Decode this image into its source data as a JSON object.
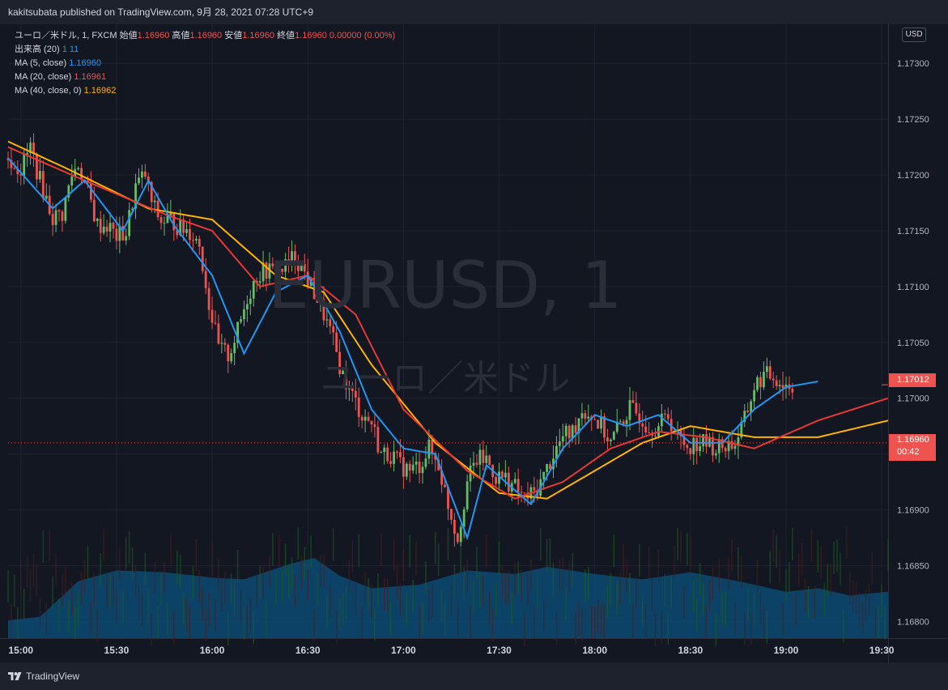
{
  "publish_line": "kakitsubata published on TradingView.com, 9月 28, 2021 07:28 UTC+9",
  "legend": {
    "symbol_label": "ユーロ／米ドル, 1, FXCM",
    "open_label": "始値",
    "open_value": "1.16960",
    "high_label": "高値",
    "high_value": "1.16960",
    "low_label": "安値",
    "low_value": "1.16960",
    "close_label": "終値",
    "close_value": "1.16960",
    "change_value": "0.00000 (0.00%)",
    "volume_label": "出来高 (20)",
    "volume_value1": "1",
    "volume_value2": "11",
    "ma5_label": "MA (5, close)",
    "ma5_value": "1.16960",
    "ma20_label": "MA (20, close)",
    "ma20_value": "1.16961",
    "ma40_label": "MA (40, close, 0)",
    "ma40_value": "1.16962"
  },
  "watermark": {
    "main": "EURUSD, 1",
    "sub": "ユーロ／米ドル"
  },
  "currency": "USD",
  "price_tags": {
    "last": "1.17012",
    "current": "1.16960",
    "countdown": "00:42"
  },
  "footer_brand": "TradingView",
  "colors": {
    "background": "#131722",
    "up": "#26a69a",
    "down": "#ef5350",
    "candle_up": "#66bb6a",
    "ma5": "#2196f3",
    "ma20": "#e53935",
    "ma40": "#ffb300",
    "volume_area": "#0d4a73"
  },
  "chart_data": {
    "type": "candlestick",
    "symbol": "EURUSD",
    "interval": "1",
    "yaxis_ticks": [
      "1.17300",
      "1.17250",
      "1.17200",
      "1.17150",
      "1.17100",
      "1.17050",
      "1.17000",
      "1.16950",
      "1.16900",
      "1.16850",
      "1.16800"
    ],
    "xaxis_ticks": [
      "15:00",
      "15:30",
      "16:00",
      "16:30",
      "17:00",
      "17:30",
      "18:00",
      "18:30",
      "19:00",
      "19:30"
    ],
    "ylim": [
      1.16785,
      1.17335
    ],
    "x_start_minute": 896,
    "x_end_minute": 1172,
    "close": {
      "minute": [
        896,
        900,
        903,
        906,
        910,
        913,
        916,
        918,
        921,
        924,
        927,
        930,
        933,
        936,
        939,
        941,
        944,
        947,
        950,
        953,
        956,
        959,
        962,
        965,
        968,
        971,
        974,
        977,
        980,
        983,
        986,
        989,
        992,
        995,
        998,
        1001,
        1004,
        1007,
        1010,
        1013,
        1016,
        1019,
        1022,
        1025,
        1028,
        1031,
        1034,
        1037,
        1040,
        1043,
        1046,
        1049,
        1052,
        1055,
        1058,
        1061,
        1064,
        1067,
        1070,
        1073,
        1076,
        1079,
        1082,
        1085,
        1088,
        1091,
        1094,
        1097,
        1100,
        1103,
        1106,
        1109,
        1112,
        1115,
        1118,
        1121,
        1124,
        1127,
        1130,
        1133,
        1136,
        1139,
        1142,
        1145,
        1148,
        1151,
        1154,
        1157,
        1160,
        1163,
        1166,
        1169,
        1172
      ],
      "value": [
        1.17215,
        1.17205,
        1.17225,
        1.17195,
        1.17162,
        1.17165,
        1.172,
        1.1721,
        1.17185,
        1.17155,
        1.17155,
        1.17145,
        1.17148,
        1.1719,
        1.172,
        1.17175,
        1.17158,
        1.1716,
        1.17152,
        1.1715,
        1.17138,
        1.17085,
        1.17045,
        1.17038,
        1.1706,
        1.1709,
        1.1711,
        1.17115,
        1.17112,
        1.17118,
        1.17128,
        1.17112,
        1.17095,
        1.17075,
        1.1705,
        1.1702,
        1.17002,
        1.16985,
        1.16978,
        1.1695,
        1.1695,
        1.1694,
        1.16935,
        1.1694,
        1.16955,
        1.1694,
        1.16905,
        1.16875,
        1.16925,
        1.16945,
        1.16945,
        1.1693,
        1.16928,
        1.1692,
        1.1691,
        1.16915,
        1.1693,
        1.1695,
        1.16965,
        1.1697,
        1.1699,
        1.16985,
        1.16975,
        1.1696,
        1.16978,
        1.1699,
        1.16985,
        1.16975,
        1.16975,
        1.16985,
        1.16965,
        1.16958,
        1.1696,
        1.1696,
        1.16955,
        1.16958,
        1.1696,
        1.1698,
        1.1701,
        1.1702,
        1.1702,
        1.17012,
        1.17012
      ]
    },
    "ma5_anchor_points": [
      [
        896,
        1.17215
      ],
      [
        910,
        1.1717
      ],
      [
        920,
        1.17195
      ],
      [
        932,
        1.1715
      ],
      [
        940,
        1.17195
      ],
      [
        948,
        1.17155
      ],
      [
        960,
        1.1711
      ],
      [
        970,
        1.1704
      ],
      [
        980,
        1.17095
      ],
      [
        990,
        1.1711
      ],
      [
        1000,
        1.1706
      ],
      [
        1010,
        1.1699
      ],
      [
        1020,
        1.16955
      ],
      [
        1030,
        1.1695
      ],
      [
        1040,
        1.16875
      ],
      [
        1046,
        1.1694
      ],
      [
        1052,
        1.16925
      ],
      [
        1060,
        1.16905
      ],
      [
        1070,
        1.16955
      ],
      [
        1080,
        1.16985
      ],
      [
        1090,
        1.16975
      ],
      [
        1100,
        1.16985
      ],
      [
        1110,
        1.1696
      ],
      [
        1120,
        1.1696
      ],
      [
        1130,
        1.1699
      ],
      [
        1140,
        1.1701
      ],
      [
        1150,
        1.17015
      ]
    ],
    "ma20_anchor_points": [
      [
        896,
        1.17225
      ],
      [
        920,
        1.17195
      ],
      [
        945,
        1.17165
      ],
      [
        960,
        1.1715
      ],
      [
        975,
        1.171
      ],
      [
        990,
        1.1711
      ],
      [
        1005,
        1.17075
      ],
      [
        1020,
        1.1699
      ],
      [
        1040,
        1.16935
      ],
      [
        1055,
        1.1691
      ],
      [
        1070,
        1.16925
      ],
      [
        1085,
        1.16955
      ],
      [
        1100,
        1.1697
      ],
      [
        1115,
        1.16965
      ],
      [
        1130,
        1.16955
      ],
      [
        1150,
        1.1698
      ],
      [
        1172,
        1.17
      ]
    ],
    "ma40_anchor_points": [
      [
        896,
        1.1723
      ],
      [
        915,
        1.17205
      ],
      [
        940,
        1.1717
      ],
      [
        960,
        1.1716
      ],
      [
        980,
        1.1711
      ],
      [
        995,
        1.17095
      ],
      [
        1010,
        1.1703
      ],
      [
        1030,
        1.1696
      ],
      [
        1050,
        1.16915
      ],
      [
        1065,
        1.1691
      ],
      [
        1080,
        1.16935
      ],
      [
        1095,
        1.1696
      ],
      [
        1110,
        1.16975
      ],
      [
        1130,
        1.16965
      ],
      [
        1150,
        1.16965
      ],
      [
        1172,
        1.1698
      ]
    ],
    "volume_area_profile": [
      [
        896,
        0.1
      ],
      [
        906,
        0.12
      ],
      [
        918,
        0.32
      ],
      [
        930,
        0.38
      ],
      [
        945,
        0.37
      ],
      [
        960,
        0.34
      ],
      [
        970,
        0.33
      ],
      [
        985,
        0.42
      ],
      [
        992,
        0.45
      ],
      [
        1000,
        0.35
      ],
      [
        1010,
        0.28
      ],
      [
        1025,
        0.3
      ],
      [
        1040,
        0.38
      ],
      [
        1055,
        0.36
      ],
      [
        1065,
        0.4
      ],
      [
        1080,
        0.36
      ],
      [
        1095,
        0.33
      ],
      [
        1110,
        0.37
      ],
      [
        1125,
        0.32
      ],
      [
        1140,
        0.26
      ],
      [
        1150,
        0.28
      ],
      [
        1160,
        0.24
      ],
      [
        1172,
        0.26
      ]
    ]
  }
}
